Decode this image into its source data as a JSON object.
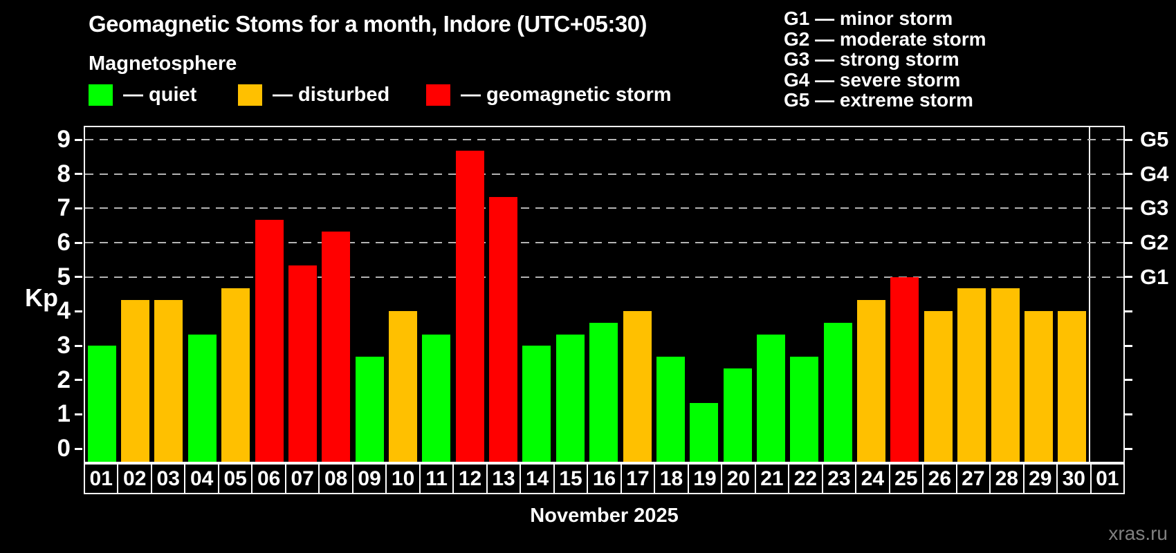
{
  "title": "Geomagnetic Stoms for a month, Indore (UTC+05:30)",
  "subtitle": "Magnetosphere",
  "legend": {
    "quiet_label": "— quiet",
    "disturbed_label": "— disturbed",
    "storm_label": "— geomagnetic storm"
  },
  "g_legend": [
    "G1 — minor storm",
    "G2 — moderate storm",
    "G3 — strong storm",
    "G4 — severe storm",
    "G5 — extreme storm"
  ],
  "axis": {
    "y_label": "Kp",
    "y_ticks": [
      0,
      1,
      2,
      3,
      4,
      5,
      6,
      7,
      8,
      9
    ],
    "right_g_labels": [
      "G1",
      "G2",
      "G3",
      "G4",
      "G5"
    ]
  },
  "xlabel": "November 2025",
  "watermark": "xras.ru",
  "colors": {
    "quiet": "#00ff00",
    "disturbed": "#ffc000",
    "storm": "#ff0000",
    "background": "#000000",
    "axis": "#ffffff",
    "grid": "#b4b4b4",
    "watermark": "#808080"
  },
  "chart_data": {
    "type": "bar",
    "title": "Geomagnetic Stoms for a month, Indore (UTC+05:30)",
    "xlabel": "November 2025",
    "ylabel": "Kp",
    "ylim": [
      0,
      9.4
    ],
    "grid": "horizontal dashed lines at Kp 5,6,7,8,9 (G1-G5 levels)",
    "legend_position": "top",
    "categories": [
      "01",
      "02",
      "03",
      "04",
      "05",
      "06",
      "07",
      "08",
      "09",
      "10",
      "11",
      "12",
      "13",
      "14",
      "15",
      "16",
      "17",
      "18",
      "19",
      "20",
      "21",
      "22",
      "23",
      "24",
      "25",
      "26",
      "27",
      "28",
      "29",
      "30",
      "01"
    ],
    "values": [
      3.0,
      4.33,
      4.33,
      3.33,
      4.67,
      6.67,
      5.33,
      6.33,
      2.67,
      4.0,
      3.33,
      8.67,
      7.33,
      3.0,
      3.33,
      3.67,
      4.0,
      2.67,
      1.33,
      2.33,
      3.33,
      2.67,
      3.67,
      4.33,
      5.0,
      4.0,
      4.67,
      4.67,
      4.0,
      4.0,
      null
    ],
    "statuses": [
      "quiet",
      "disturbed",
      "disturbed",
      "quiet",
      "disturbed",
      "storm",
      "storm",
      "storm",
      "quiet",
      "disturbed",
      "quiet",
      "storm",
      "storm",
      "quiet",
      "quiet",
      "quiet",
      "disturbed",
      "quiet",
      "quiet",
      "quiet",
      "quiet",
      "quiet",
      "quiet",
      "disturbed",
      "storm",
      "disturbed",
      "disturbed",
      "disturbed",
      "disturbed",
      "disturbed",
      null
    ],
    "right_axis_mapping": {
      "G1": 5,
      "G2": 6,
      "G3": 7,
      "G4": 8,
      "G5": 9
    }
  }
}
